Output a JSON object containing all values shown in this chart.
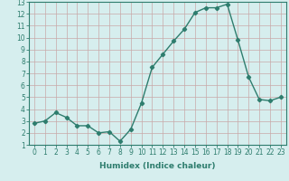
{
  "x": [
    0,
    1,
    2,
    3,
    4,
    5,
    6,
    7,
    8,
    9,
    10,
    11,
    12,
    13,
    14,
    15,
    16,
    17,
    18,
    19,
    20,
    21,
    22,
    23
  ],
  "y": [
    2.8,
    3.0,
    3.7,
    3.3,
    2.6,
    2.6,
    2.0,
    2.1,
    1.3,
    2.3,
    4.5,
    7.5,
    8.6,
    9.7,
    10.7,
    12.1,
    12.5,
    12.5,
    12.8,
    9.8,
    6.7,
    4.8,
    4.7,
    5.0
  ],
  "line_color": "#2e7d6e",
  "marker": "D",
  "marker_size": 2.2,
  "bg_color": "#d6eeee",
  "grid_color": "#c8a8a8",
  "xlabel": "Humidex (Indice chaleur)",
  "xlim": [
    -0.5,
    23.5
  ],
  "ylim": [
    1,
    13
  ],
  "yticks": [
    1,
    2,
    3,
    4,
    5,
    6,
    7,
    8,
    9,
    10,
    11,
    12,
    13
  ],
  "xticks": [
    0,
    1,
    2,
    3,
    4,
    5,
    6,
    7,
    8,
    9,
    10,
    11,
    12,
    13,
    14,
    15,
    16,
    17,
    18,
    19,
    20,
    21,
    22,
    23
  ],
  "tick_label_fontsize": 5.5,
  "xlabel_fontsize": 6.5,
  "line_width": 1.0
}
